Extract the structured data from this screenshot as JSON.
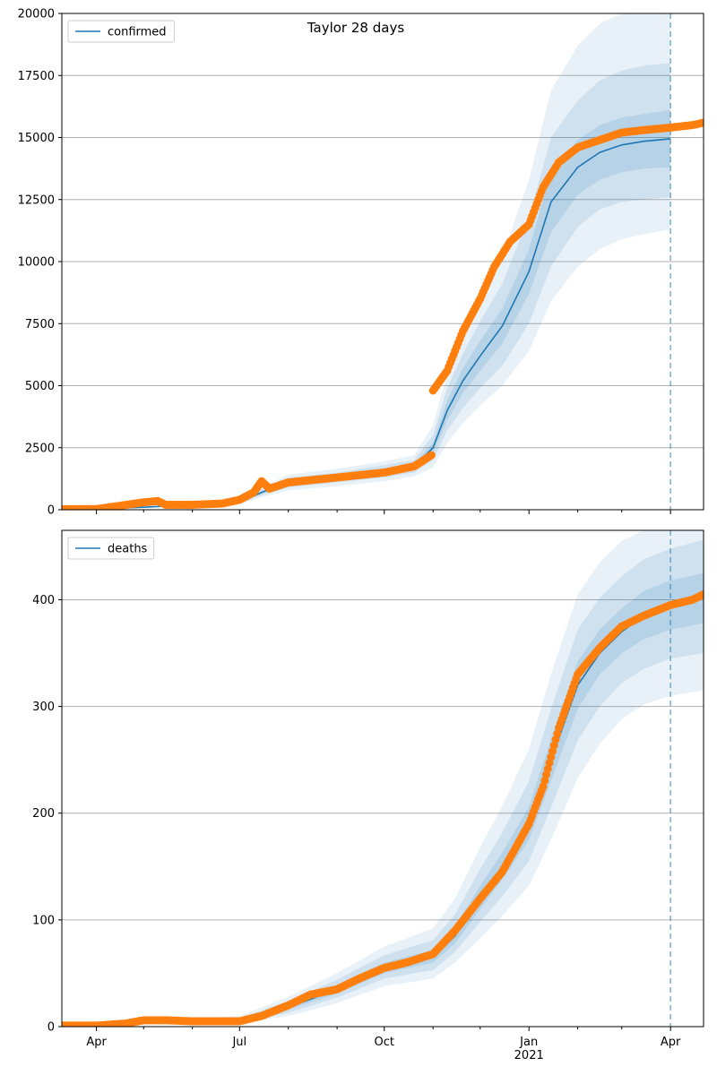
{
  "figure": {
    "title": "Taylor 28 days"
  },
  "chart_data": [
    {
      "type": "line",
      "title": "Taylor 28 days",
      "xlabel": "",
      "ylabel": "",
      "ylim": [
        0,
        20000
      ],
      "yticks": [
        0,
        2500,
        5000,
        7500,
        10000,
        12500,
        15000,
        17500,
        20000
      ],
      "ytick_labels": [
        "0",
        "2500",
        "5000",
        "7500",
        "10000",
        "12500",
        "15000",
        "17500",
        "20000"
      ],
      "grid": "horizontal",
      "legend_position": "top-left",
      "forecast_start": "2021-04-01",
      "band_color": "#1f77b4",
      "series": [
        {
          "name": "confirmed",
          "kind": "model",
          "color": "#1f77b4",
          "x": [
            "2020-03-10",
            "2020-04-01",
            "2020-05-01",
            "2020-06-01",
            "2020-07-01",
            "2020-07-15",
            "2020-08-01",
            "2020-09-01",
            "2020-10-01",
            "2020-10-20",
            "2020-11-01",
            "2020-11-10",
            "2020-11-20",
            "2020-12-01",
            "2020-12-15",
            "2021-01-01",
            "2021-01-15",
            "2021-02-01",
            "2021-02-15",
            "2021-03-01",
            "2021-03-15",
            "2021-04-01"
          ],
          "y": [
            20,
            30,
            100,
            200,
            300,
            700,
            1100,
            1300,
            1550,
            1750,
            2500,
            4000,
            5200,
            6200,
            7400,
            9600,
            12400,
            13800,
            14400,
            14700,
            14850,
            14950
          ],
          "lower_50": [
            20,
            30,
            90,
            190,
            280,
            650,
            1020,
            1220,
            1450,
            1650,
            2300,
            3600,
            4700,
            5600,
            6700,
            8700,
            11200,
            12700,
            13300,
            13600,
            13750,
            13800
          ],
          "upper_50": [
            20,
            30,
            110,
            210,
            320,
            750,
            1180,
            1380,
            1650,
            1850,
            2700,
            4400,
            5700,
            6800,
            8100,
            10500,
            13600,
            14900,
            15500,
            15800,
            15950,
            16100
          ],
          "lower_80": [
            20,
            30,
            80,
            170,
            250,
            580,
            900,
            1100,
            1300,
            1500,
            2000,
            3200,
            4100,
            4900,
            5800,
            7500,
            9800,
            11400,
            12100,
            12400,
            12500,
            12600
          ],
          "upper_80": [
            20,
            30,
            120,
            230,
            350,
            820,
            1300,
            1500,
            1800,
            2000,
            3000,
            4900,
            6300,
            7600,
            9100,
            11800,
            15000,
            16500,
            17300,
            17700,
            17900,
            18000
          ],
          "lower_95": [
            20,
            30,
            70,
            150,
            220,
            500,
            780,
            950,
            1150,
            1350,
            1700,
            2700,
            3500,
            4200,
            5000,
            6400,
            8400,
            9800,
            10500,
            10900,
            11100,
            11300
          ],
          "upper_95": [
            20,
            30,
            130,
            250,
            380,
            900,
            1420,
            1650,
            1950,
            2200,
            3400,
            5500,
            7000,
            8600,
            10200,
            13300,
            16900,
            18700,
            19600,
            20000,
            20200,
            20300
          ]
        },
        {
          "name": "",
          "kind": "observed",
          "color": "#ff7f0e",
          "x": [
            "2020-03-10",
            "2020-04-01",
            "2020-04-15",
            "2020-05-01",
            "2020-05-10",
            "2020-05-15",
            "2020-06-01",
            "2020-06-20",
            "2020-07-01",
            "2020-07-10",
            "2020-07-15",
            "2020-07-20",
            "2020-08-01",
            "2020-09-01",
            "2020-10-01",
            "2020-10-20",
            "2020-10-31",
            "2020-11-01",
            "2020-11-10",
            "2020-11-20",
            "2020-12-01",
            "2020-12-10",
            "2020-12-20",
            "2021-01-01",
            "2021-01-10",
            "2021-01-20",
            "2021-02-01",
            "2021-02-15",
            "2021-03-01",
            "2021-03-15",
            "2021-04-01",
            "2021-04-15",
            "2021-04-22"
          ],
          "y": [
            20,
            30,
            150,
            300,
            350,
            200,
            200,
            250,
            400,
            700,
            1150,
            850,
            1100,
            1300,
            1500,
            1750,
            2200,
            4800,
            5600,
            7200,
            8500,
            9800,
            10800,
            11500,
            13000,
            14000,
            14600,
            14900,
            15200,
            15300,
            15400,
            15500,
            15600
          ]
        }
      ]
    },
    {
      "type": "line",
      "title": "",
      "xlabel": "",
      "ylabel": "",
      "ylim": [
        0,
        465
      ],
      "yticks": [
        0,
        100,
        200,
        300,
        400
      ],
      "ytick_labels": [
        "0",
        "100",
        "200",
        "300",
        "400"
      ],
      "xticks": [
        "2020-04-01",
        "2020-07-01",
        "2020-10-01",
        "2021-01-01",
        "2021-04-01"
      ],
      "xtick_labels": [
        "Apr",
        "Jul",
        "Oct",
        "Jan",
        "Apr"
      ],
      "xtick_year_label": "2021",
      "grid": "horizontal",
      "legend_position": "top-left",
      "forecast_start": "2021-04-01",
      "band_color": "#1f77b4",
      "series": [
        {
          "name": "deaths",
          "kind": "model",
          "color": "#1f77b4",
          "x": [
            "2020-03-10",
            "2020-04-01",
            "2020-05-01",
            "2020-06-01",
            "2020-07-01",
            "2020-08-01",
            "2020-09-01",
            "2020-10-01",
            "2020-11-01",
            "2020-11-15",
            "2020-12-01",
            "2020-12-15",
            "2021-01-01",
            "2021-01-15",
            "2021-02-01",
            "2021-02-15",
            "2021-03-01",
            "2021-03-15",
            "2021-04-01",
            "2021-04-22"
          ],
          "y": [
            1,
            1,
            4,
            5,
            6,
            18,
            35,
            55,
            65,
            85,
            120,
            150,
            190,
            250,
            320,
            350,
            370,
            385,
            395,
            402
          ],
          "lower_50": [
            1,
            1,
            4,
            5,
            5,
            16,
            31,
            50,
            60,
            78,
            110,
            138,
            175,
            230,
            298,
            330,
            350,
            363,
            372,
            378
          ],
          "upper_50": [
            1,
            1,
            5,
            6,
            7,
            20,
            39,
            60,
            72,
            94,
            132,
            163,
            206,
            270,
            342,
            372,
            392,
            408,
            418,
            425
          ],
          "lower_80": [
            1,
            1,
            3,
            4,
            4,
            13,
            27,
            45,
            53,
            70,
            98,
            122,
            155,
            205,
            268,
            300,
            322,
            335,
            345,
            350
          ],
          "upper_80": [
            1,
            1,
            5,
            6,
            8,
            24,
            44,
            67,
            81,
            105,
            148,
            182,
            230,
            298,
            372,
            402,
            422,
            438,
            448,
            456
          ],
          "lower_95": [
            0,
            0,
            2,
            3,
            3,
            10,
            22,
            38,
            45,
            60,
            83,
            104,
            132,
            175,
            233,
            265,
            288,
            302,
            310,
            315
          ],
          "upper_95": [
            2,
            2,
            6,
            7,
            10,
            28,
            50,
            75,
            92,
            120,
            168,
            207,
            260,
            330,
            405,
            435,
            455,
            465,
            470,
            475
          ]
        },
        {
          "name": "",
          "kind": "observed",
          "color": "#ff7f0e",
          "x": [
            "2020-03-10",
            "2020-04-01",
            "2020-04-20",
            "2020-05-01",
            "2020-05-15",
            "2020-06-01",
            "2020-07-01",
            "2020-07-15",
            "2020-08-01",
            "2020-08-15",
            "2020-09-01",
            "2020-09-15",
            "2020-10-01",
            "2020-10-15",
            "2020-11-01",
            "2020-11-15",
            "2020-12-01",
            "2020-12-15",
            "2021-01-01",
            "2021-01-10",
            "2021-01-20",
            "2021-02-01",
            "2021-02-15",
            "2021-03-01",
            "2021-03-15",
            "2021-04-01",
            "2021-04-15",
            "2021-04-22"
          ],
          "y": [
            1,
            1,
            3,
            6,
            6,
            5,
            5,
            10,
            20,
            30,
            35,
            45,
            55,
            60,
            68,
            90,
            120,
            145,
            190,
            225,
            280,
            330,
            355,
            375,
            385,
            395,
            400,
            405
          ]
        }
      ]
    }
  ]
}
